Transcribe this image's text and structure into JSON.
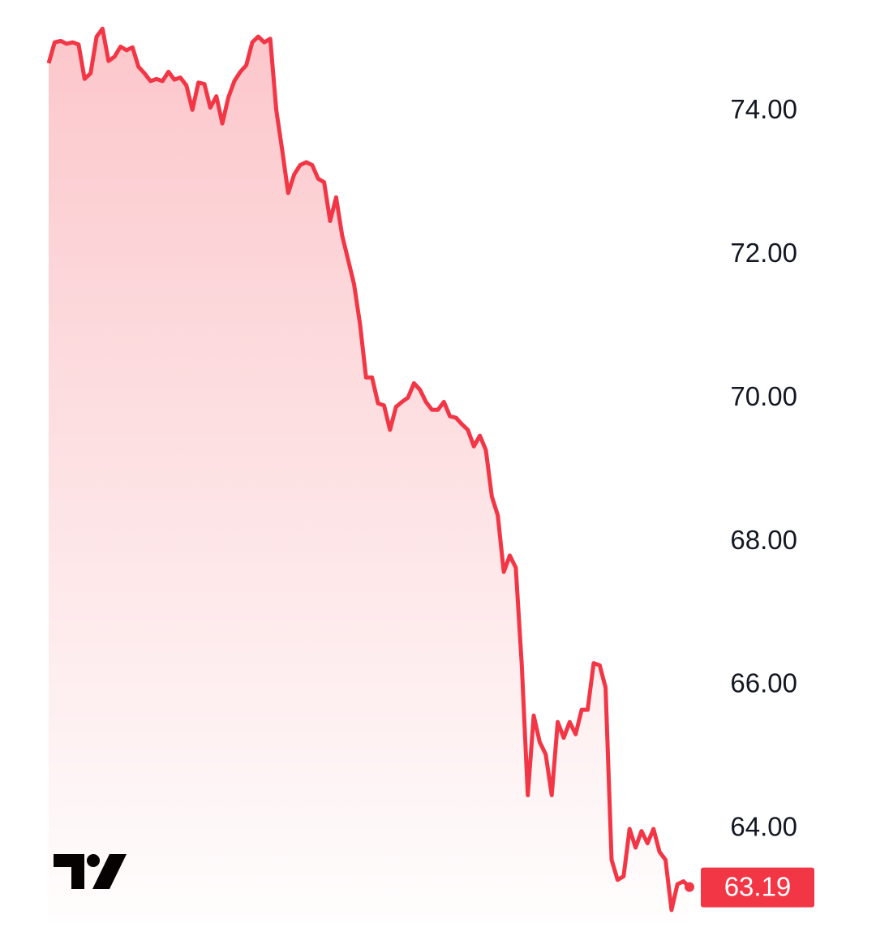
{
  "chart_data": {
    "type": "line",
    "color": "#f23645",
    "values": [
      74.67,
      74.96,
      74.98,
      74.94,
      74.96,
      74.93,
      74.45,
      74.53,
      75.04,
      75.15,
      74.7,
      74.76,
      74.9,
      74.85,
      74.89,
      74.62,
      74.53,
      74.42,
      74.45,
      74.42,
      74.55,
      74.44,
      74.47,
      74.36,
      74.02,
      74.4,
      74.38,
      74.05,
      74.21,
      73.83,
      74.19,
      74.42,
      74.55,
      74.64,
      74.96,
      75.04,
      74.96,
      75.01,
      74.02,
      73.46,
      72.86,
      73.12,
      73.25,
      73.29,
      73.25,
      73.06,
      73.01,
      72.47,
      72.8,
      72.27,
      71.93,
      71.59,
      71.03,
      70.29,
      70.29,
      69.93,
      69.9,
      69.56,
      69.88,
      69.95,
      70.01,
      70.21,
      70.12,
      69.95,
      69.84,
      69.84,
      69.95,
      69.75,
      69.73,
      69.64,
      69.56,
      69.33,
      69.48,
      69.28,
      68.63,
      68.37,
      67.58,
      67.81,
      67.64,
      66.28,
      64.47,
      65.58,
      65.21,
      65.04,
      64.47,
      65.49,
      65.27,
      65.49,
      65.32,
      65.66,
      65.66,
      66.31,
      66.28,
      65.97,
      63.57,
      63.29,
      63.34,
      64.0,
      63.74,
      63.97,
      63.8,
      64.0,
      63.68,
      63.57,
      62.87,
      63.23,
      63.27,
      63.19
    ],
    "last_value_label": "63.19",
    "ylim": [
      62.7,
      75.55
    ],
    "yticks": [
      {
        "value": 74,
        "label": "74.00"
      },
      {
        "value": 72,
        "label": "72.00"
      },
      {
        "value": 70,
        "label": "70.00"
      },
      {
        "value": 68,
        "label": "68.00"
      },
      {
        "value": 66,
        "label": "66.00"
      },
      {
        "value": 64,
        "label": "64.00"
      }
    ]
  }
}
